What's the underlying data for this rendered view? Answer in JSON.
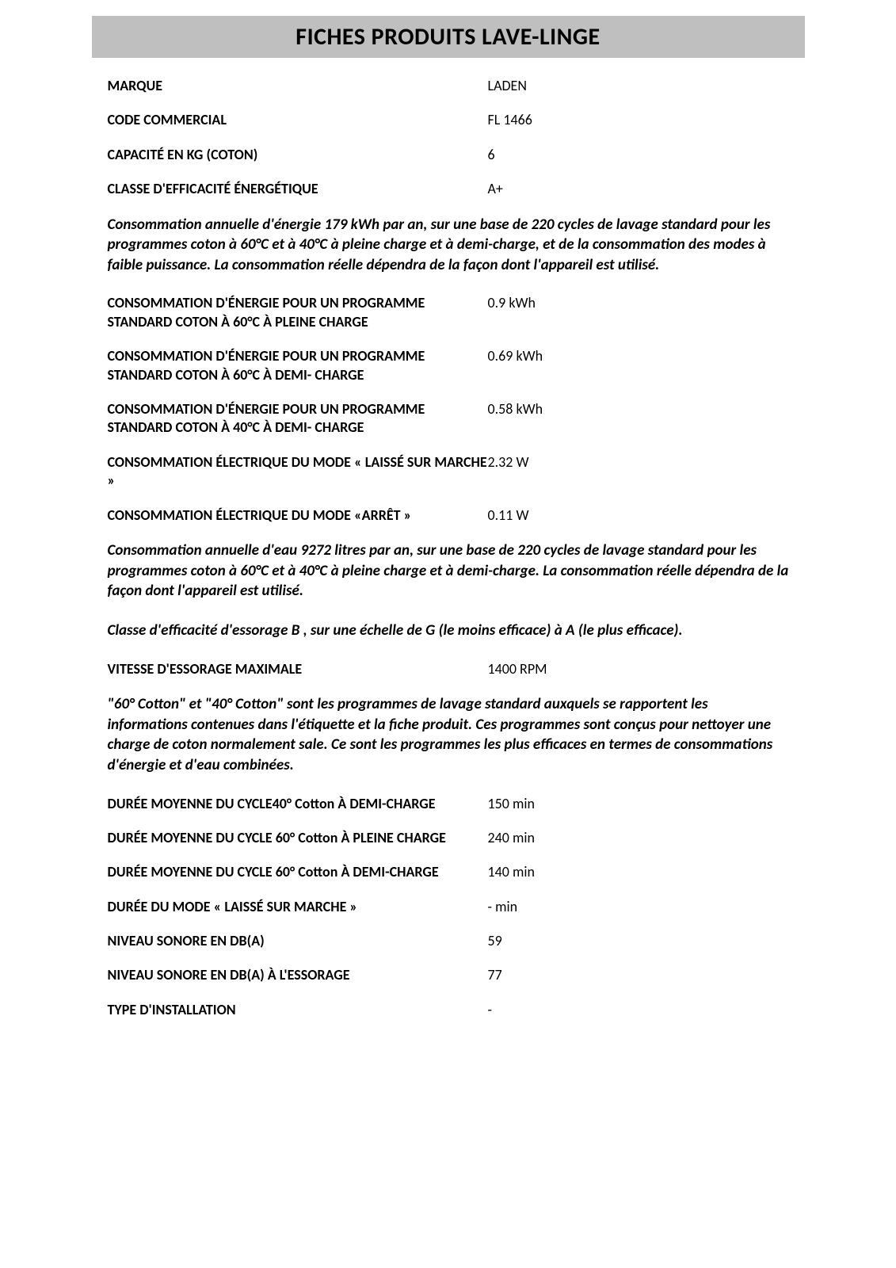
{
  "title": "FICHES PRODUITS LAVE-LINGE",
  "header_rows": [
    {
      "label": "MARQUE",
      "value": "LADEN"
    },
    {
      "label": "CODE COMMERCIAL",
      "value": "FL 1466"
    },
    {
      "label": "CAPACITÉ EN KG (COTON)",
      "value": "6"
    },
    {
      "label": "CLASSE D'EFFICACITÉ ÉNERGÉTIQUE",
      "value": "A+"
    }
  ],
  "note1": "Consommation annuelle d'énergie 179 kWh par an, sur une base de 220 cycles de lavage standard pour les programmes coton à 60°C et à 40°C à pleine charge et à demi-charge, et de la consommation des modes à faible puissance. La consommation réelle dépendra de la façon dont l'appareil est utilisé.",
  "energy_rows": [
    {
      "label": "CONSOMMATION D'ÉNERGIE POUR UN PROGRAMME STANDARD COTON À 60°C À PLEINE CHARGE",
      "value": "0.9 kWh"
    },
    {
      "label": "CONSOMMATION D'ÉNERGIE POUR UN PROGRAMME STANDARD COTON À 60°C À DEMI- CHARGE",
      "value": "0.69 kWh"
    },
    {
      "label": "CONSOMMATION D'ÉNERGIE POUR UN PROGRAMME STANDARD COTON À 40°C À DEMI- CHARGE",
      "value": "0.58 kWh"
    },
    {
      "label": "CONSOMMATION ÉLECTRIQUE DU MODE « LAISSÉ SUR MARCHE »",
      "value": "2.32 W"
    },
    {
      "label": "CONSOMMATION ÉLECTRIQUE DU MODE «ARRÊT »",
      "value": "0.11 W"
    }
  ],
  "note2": "Consommation annuelle d'eau 9272 litres par an, sur une base de 220 cycles de lavage standard pour les programmes coton à 60°C et à 40°C à pleine charge et à demi-charge. La consommation réelle dépendra de la façon dont l'appareil est utilisé.",
  "note3": "Classe d'efficacité d'essorage B , sur une échelle de G (le moins efficace) à A (le plus efficace).",
  "spin_rows": [
    {
      "label": "VITESSE D'ESSORAGE MAXIMALE",
      "value": "1400 RPM"
    }
  ],
  "note4": "\"60° Cotton\" et \"40° Cotton\" sont les programmes de lavage standard auxquels se rapportent les informations contenues dans l'étiquette et la fiche produit. Ces programmes sont conçus pour nettoyer une charge de coton normalement sale. Ce sont les programmes les plus efficaces en termes de consommations d'énergie et d'eau combinées.",
  "duration_rows": [
    {
      "label": "DURÉE MOYENNE DU CYCLE40° Cotton À DEMI-CHARGE",
      "value": "150 min"
    },
    {
      "label": "DURÉE MOYENNE DU CYCLE 60° Cotton À PLEINE CHARGE",
      "value": "240 min"
    },
    {
      "label": "DURÉE MOYENNE DU CYCLE 60° Cotton À DEMI-CHARGE",
      "value": "140 min"
    },
    {
      "label": "DURÉE DU MODE «  LAISSÉ SUR MARCHE »",
      "value": "- min"
    },
    {
      "label": "NIVEAU SONORE EN DB(A)",
      "value": "59"
    },
    {
      "label": "NIVEAU SONORE EN DB(A) À L'ESSORAGE",
      "value": "77"
    },
    {
      "label": "TYPE D'INSTALLATION",
      "value": "-"
    }
  ],
  "colors": {
    "title_bg": "#bfbfbf",
    "text": "#000000",
    "background": "#ffffff"
  },
  "typography": {
    "title_fontsize": 30,
    "label_fontsize": 18,
    "value_fontsize": 18,
    "note_fontsize": 19
  }
}
